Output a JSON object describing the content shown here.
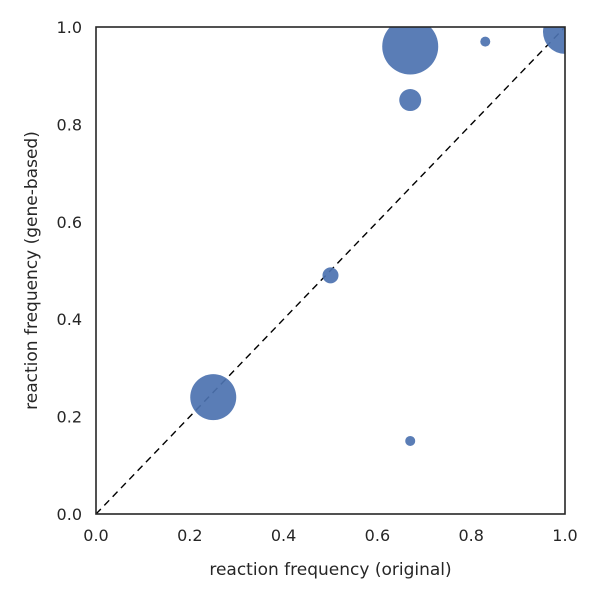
{
  "chart_data": {
    "type": "scatter",
    "title": "",
    "xlabel": "reaction frequency (original)",
    "ylabel": "reaction frequency (gene-based)",
    "xlim": [
      0.0,
      1.0
    ],
    "ylim": [
      0.0,
      1.0
    ],
    "x_ticks": [
      "0.0",
      "0.2",
      "0.4",
      "0.6",
      "0.8",
      "1.0"
    ],
    "y_ticks": [
      "0.0",
      "0.2",
      "0.4",
      "0.6",
      "0.8",
      "1.0"
    ],
    "grid": false,
    "legend": "none",
    "reference_line": {
      "style": "dashed",
      "from": [
        0.0,
        0.0
      ],
      "to": [
        1.0,
        1.0
      ],
      "color": "#000000"
    },
    "marker_color": "#4c72b0",
    "points": [
      {
        "x": 0.67,
        "y": 0.96,
        "size": 28
      },
      {
        "x": 0.83,
        "y": 0.97,
        "size": 5
      },
      {
        "x": 1.0,
        "y": 0.99,
        "size": 22
      },
      {
        "x": 0.67,
        "y": 0.85,
        "size": 11
      },
      {
        "x": 0.5,
        "y": 0.49,
        "size": 8
      },
      {
        "x": 0.25,
        "y": 0.24,
        "size": 23
      },
      {
        "x": 0.67,
        "y": 0.15,
        "size": 5
      }
    ]
  }
}
